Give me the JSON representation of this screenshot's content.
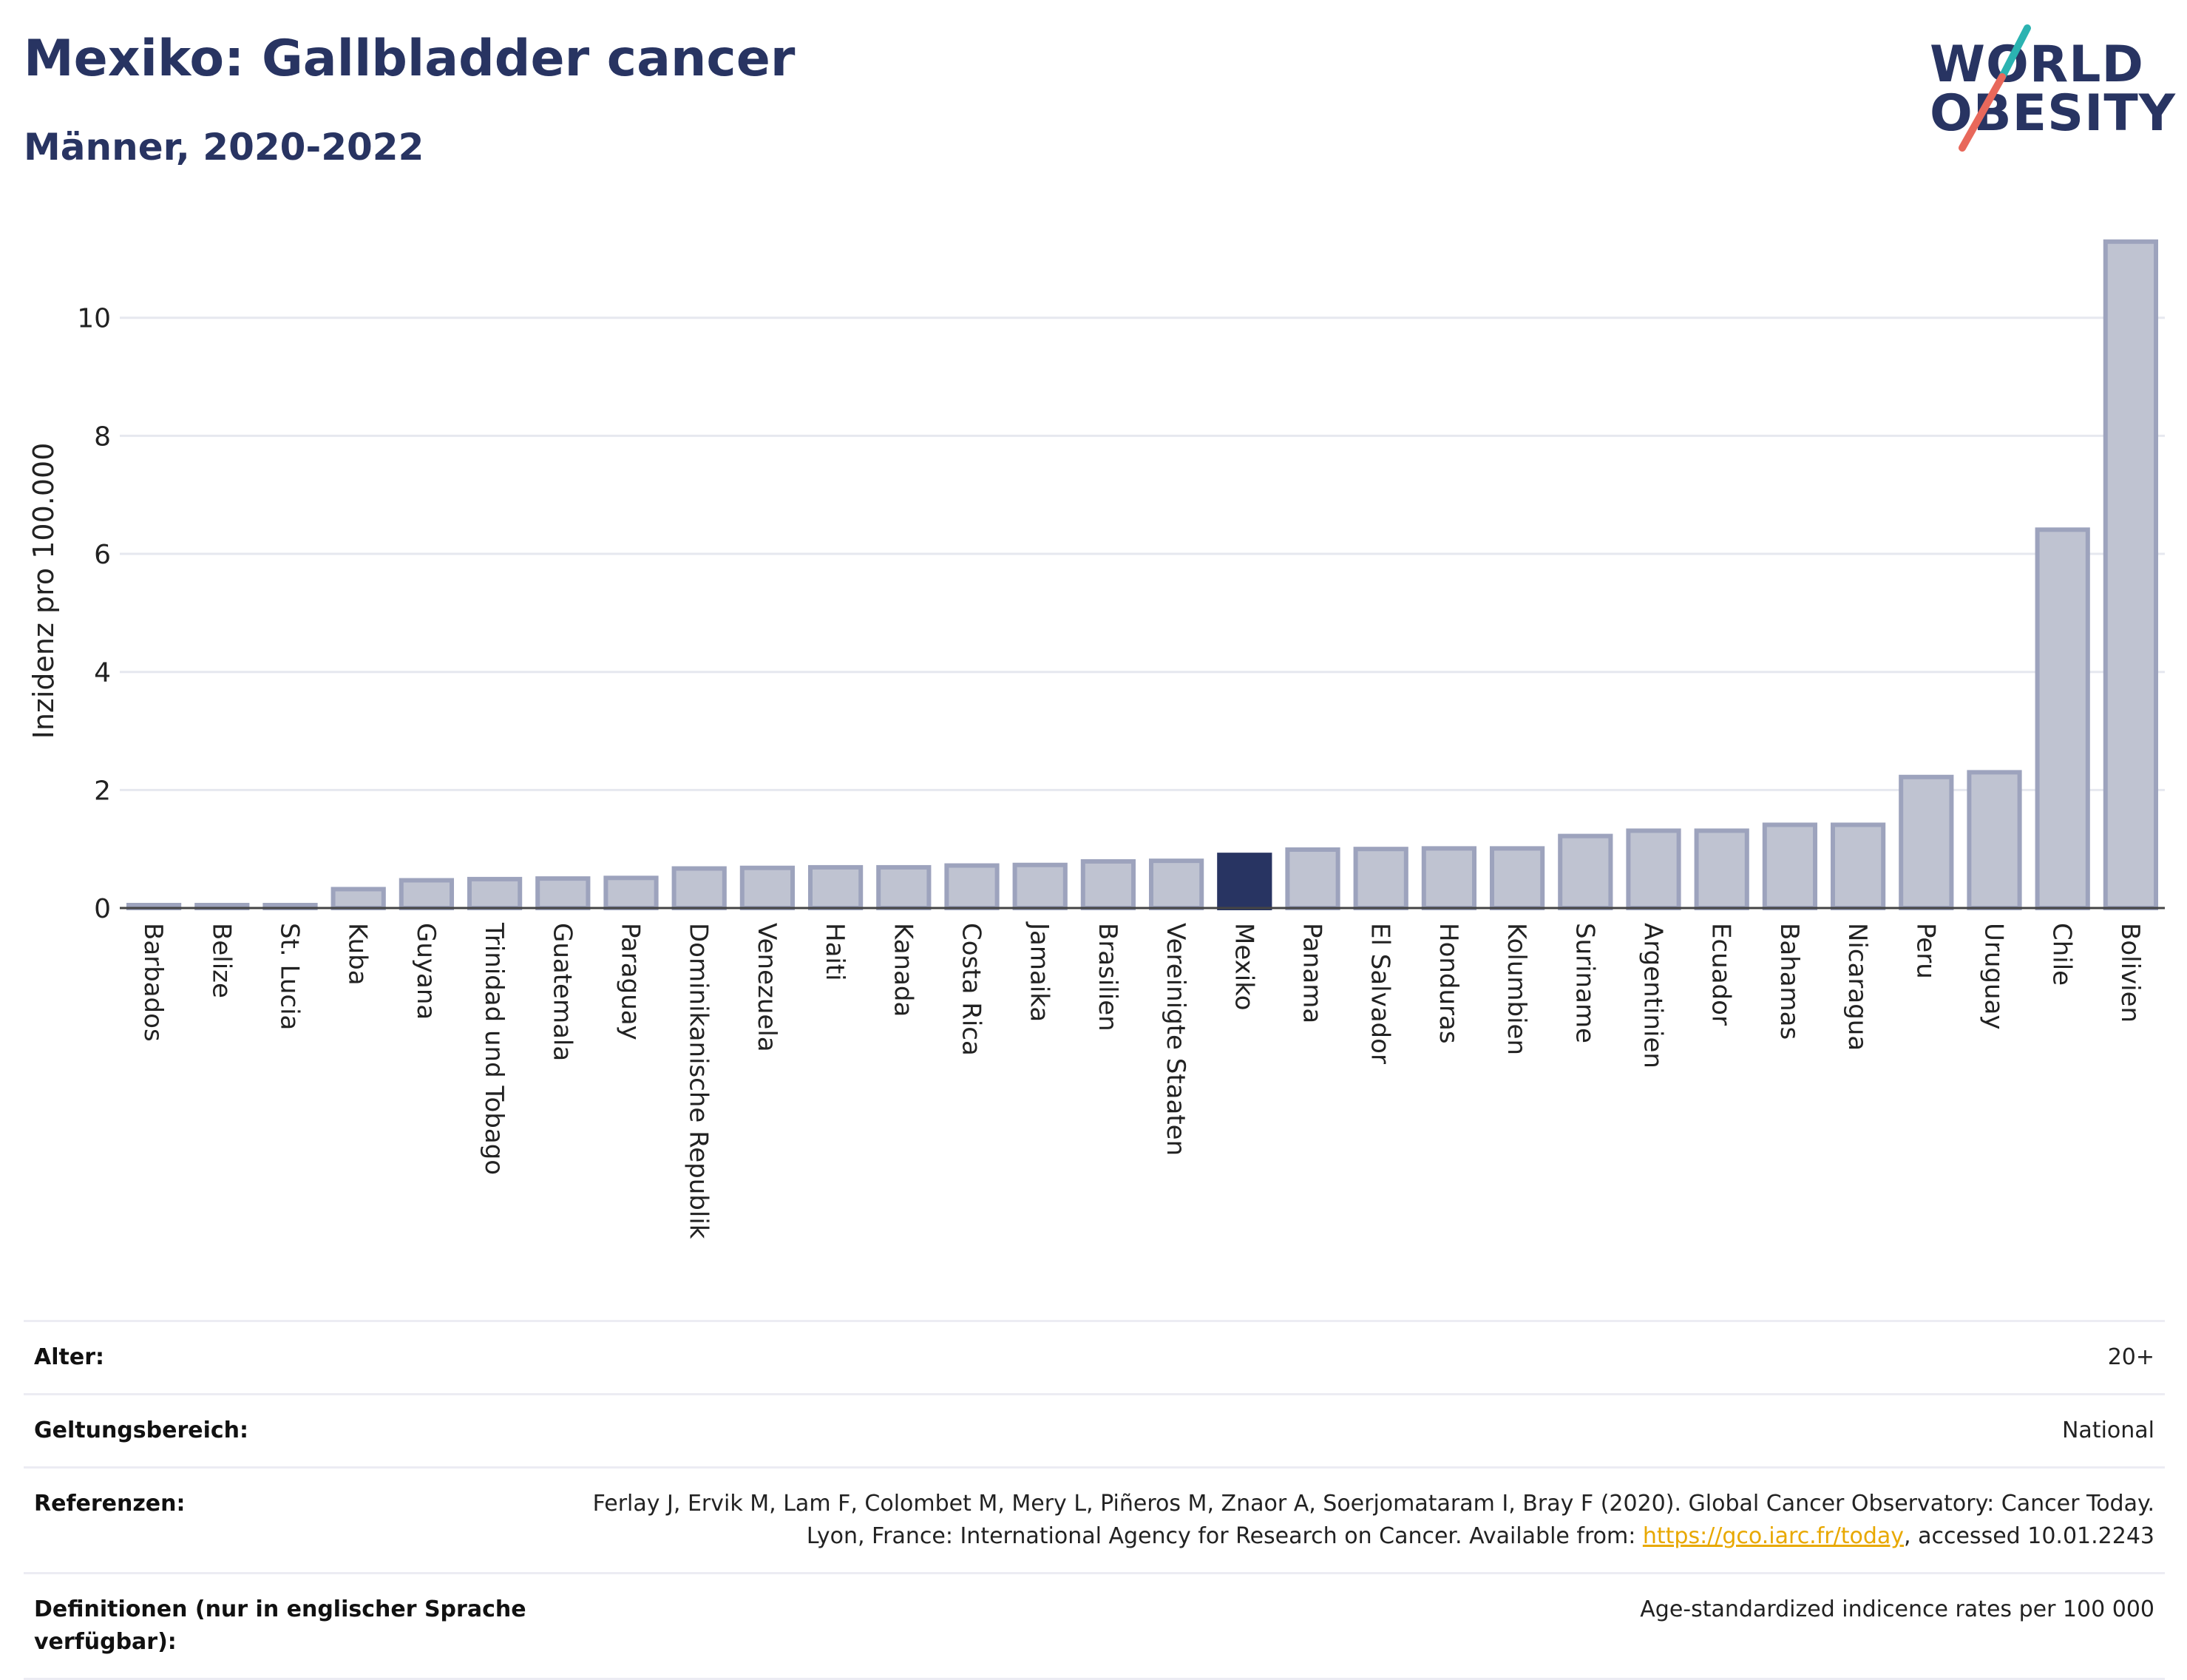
{
  "header": {
    "title": "Mexiko: Gallbladder cancer",
    "subtitle": "Männer, 2020-2022"
  },
  "logo": {
    "line1": "WORLD",
    "line2": "OBESITY",
    "accent_colors": [
      "#2bb3b1",
      "#e8685b"
    ]
  },
  "colors": {
    "bar_default": "#bfc3d1",
    "bar_border": "#9da3bd",
    "bar_highlight": "#283462",
    "title": "#283462",
    "grid": "#e6e8ef",
    "link": "#e8a800"
  },
  "chart_data": {
    "type": "bar",
    "title": "Mexiko: Gallbladder cancer",
    "subtitle": "Männer, 2020-2022",
    "xlabel": "",
    "ylabel": "Inzidenz pro 100.000",
    "ylim": [
      0,
      11.5
    ],
    "yticks": [
      0,
      2,
      4,
      6,
      8,
      10
    ],
    "grid": true,
    "highlight": "Mexiko",
    "categories": [
      "Barbados",
      "Belize",
      "St. Lucia",
      "Kuba",
      "Guyana",
      "Trinidad und Tobago",
      "Guatemala",
      "Paraguay",
      "Dominikanische Republik",
      "Venezuela",
      "Haiti",
      "Kanada",
      "Costa Rica",
      "Jamaika",
      "Brasilien",
      "Vereinigte Staaten",
      "Mexiko",
      "Panama",
      "El Salvador",
      "Honduras",
      "Kolumbien",
      "Suriname",
      "Argentinien",
      "Ecuador",
      "Bahamas",
      "Nicaragua",
      "Peru",
      "Uruguay",
      "Chile",
      "Bolivien"
    ],
    "values": [
      0.05,
      0.05,
      0.05,
      0.32,
      0.47,
      0.49,
      0.5,
      0.51,
      0.67,
      0.68,
      0.69,
      0.69,
      0.72,
      0.73,
      0.79,
      0.8,
      0.9,
      0.99,
      1.0,
      1.01,
      1.01,
      1.22,
      1.31,
      1.31,
      1.41,
      1.41,
      2.22,
      2.3,
      6.41,
      11.29
    ]
  },
  "info": {
    "rows": [
      {
        "key": "Alter:",
        "value": "20+"
      },
      {
        "key": "Geltungsbereich:",
        "value": "National"
      },
      {
        "key": "Referenzen:",
        "value_pre": "Ferlay J, Ervik M, Lam F, Colombet M, Mery L, Piñeros M, Znaor A, Soerjomataram I, Bray F (2020). Global Cancer Observatory: Cancer Today. Lyon, France: International Agency for Research on Cancer. Available from: ",
        "link": "https://gco.iarc.fr/today",
        "value_post": ", accessed 10.01.2243"
      },
      {
        "key": "Definitionen (nur in englischer Sprache verfügbar):",
        "value": "Age-standardized indicence rates per 100 000"
      }
    ]
  }
}
